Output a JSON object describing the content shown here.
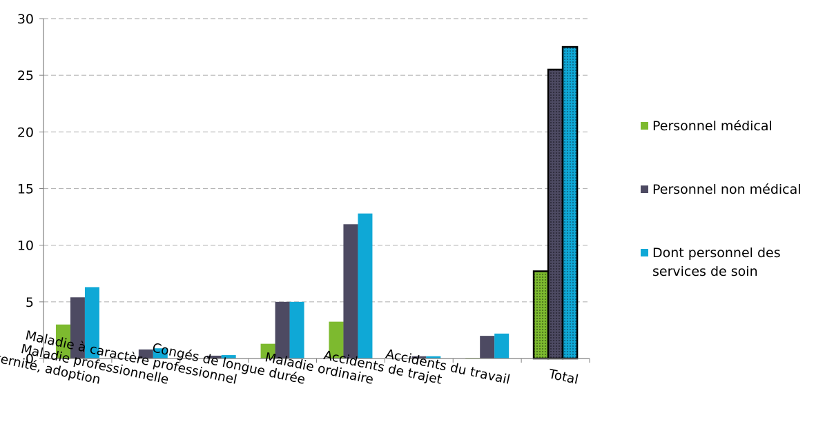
{
  "chart_data": {
    "type": "bar",
    "categories": [
      "Maternité, paternité, adoption",
      "Maladie professionnelle",
      "Maladie à caractère professionnel",
      "Congés de longue durée",
      "Maladie ordinaire",
      "Accidents de trajet",
      "Accidents du travail",
      "Total"
    ],
    "series": [
      {
        "name": "Personnel médical",
        "color": "#7dba2f",
        "values": [
          3.0,
          0.0,
          0.0,
          1.3,
          3.25,
          0.0,
          0.05,
          7.7
        ]
      },
      {
        "name": "Personnel non médical",
        "color": "#4d4a62",
        "values": [
          5.4,
          0.8,
          0.25,
          5.0,
          11.85,
          0.2,
          2.0,
          25.5
        ]
      },
      {
        "name": "Dont personnel des services de soin",
        "color": "#0fa8d6",
        "values": [
          6.3,
          0.9,
          0.3,
          5.0,
          12.8,
          0.2,
          2.2,
          27.5
        ]
      }
    ],
    "highlight_category": "Total",
    "ylim": [
      0,
      30
    ],
    "yticks": [
      "0",
      "5",
      "10",
      "15",
      "20",
      "25",
      "30"
    ],
    "grid": true,
    "legend_position": "right"
  }
}
